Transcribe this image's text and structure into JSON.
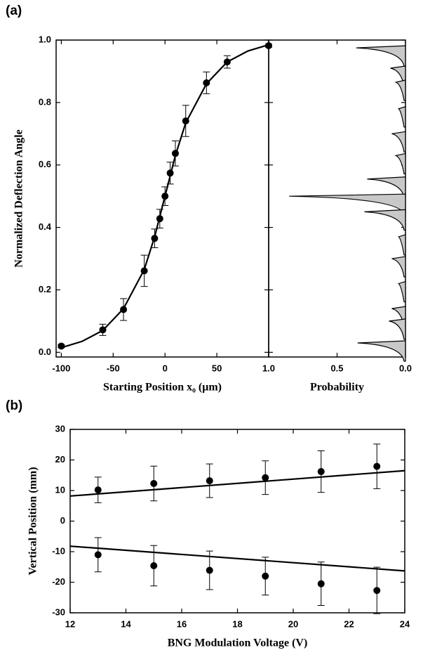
{
  "chart_data": [
    {
      "type": "scatter",
      "title": "(a)",
      "xlabel": "Starting Position x₀ (μm)",
      "ylabel": "Normalized Deflection Angle",
      "xlim": [
        -105,
        100
      ],
      "ylim": [
        -0.015,
        1.0
      ],
      "xticks": [
        -100,
        -50,
        0,
        50
      ],
      "yticks": [
        {
          "value": 0,
          "label": "0.0"
        },
        {
          "value": 0.2,
          "label": "0.2"
        },
        {
          "value": 0.4,
          "label": "0.4"
        },
        {
          "value": 0.6,
          "label": "0.6"
        },
        {
          "value": 0.8,
          "label": "0.8"
        },
        {
          "value": 1.0,
          "label": "1.0"
        }
      ],
      "color": "#000000",
      "series": [
        {
          "x": [
            -100,
            -60,
            -40,
            -20,
            -10,
            -5,
            0,
            5,
            10,
            20,
            40,
            60,
            100
          ],
          "values": [
            0.02,
            0.072,
            0.137,
            0.261,
            0.365,
            0.428,
            0.5,
            0.574,
            0.637,
            0.741,
            0.863,
            0.93,
            0.982
          ],
          "errors": [
            0.005,
            0.018,
            0.035,
            0.05,
            0.03,
            0.03,
            0.03,
            0.035,
            0.04,
            0.05,
            0.035,
            0.02,
            0.005
          ],
          "fit": {
            "x": [
              -100,
              -80,
              -60,
              -40,
              -20,
              -10,
              0,
              10,
              20,
              40,
              60,
              80,
              100
            ],
            "values": [
              0.015,
              0.035,
              0.07,
              0.14,
              0.265,
              0.37,
              0.5,
              0.63,
              0.735,
              0.86,
              0.93,
              0.965,
              0.985
            ]
          }
        }
      ]
    },
    {
      "type": "spectrum",
      "xlabel": "Probability",
      "xlim": [
        1.0,
        0.0
      ],
      "ylim": [
        -0.015,
        1.0
      ],
      "xticks": [
        {
          "value": 1.0,
          "label": "1.0"
        },
        {
          "value": 0.5,
          "label": "0.5"
        },
        {
          "value": 0.0,
          "label": "0.0"
        }
      ],
      "color": "#c8c8c8",
      "levels": [
        0.975,
        0.91,
        0.865,
        0.78,
        0.7,
        0.63,
        0.555,
        0.5,
        0.45,
        0.37,
        0.3,
        0.22,
        0.14,
        0.1,
        0.03
      ],
      "values": [
        0.36,
        0.11,
        0.07,
        0.05,
        0.1,
        0.07,
        0.28,
        0.85,
        0.3,
        0.05,
        0.1,
        0.05,
        0.1,
        0.12,
        0.35
      ]
    },
    {
      "type": "scatter",
      "title": "(b)",
      "xlabel": "BNG Modulation Voltage (V)",
      "ylabel": "Vertical Position (mm)",
      "xlim": [
        12,
        24
      ],
      "ylim": [
        -30,
        30
      ],
      "xticks": [
        12,
        14,
        16,
        18,
        20,
        22,
        24
      ],
      "yticks": [
        -30,
        -20,
        -10,
        0,
        10,
        20,
        30
      ],
      "color": "#000000",
      "series": [
        {
          "x": [
            13,
            15,
            17,
            19,
            21,
            23
          ],
          "values": [
            10.2,
            12.3,
            13.2,
            14.2,
            16.2,
            17.9
          ],
          "errors": [
            4.2,
            5.7,
            5.5,
            5.5,
            6.8,
            7.3
          ],
          "fit": {
            "x": [
              12,
              24
            ],
            "values": [
              8.2,
              16.5
            ]
          }
        },
        {
          "x": [
            13,
            15,
            17,
            19,
            21,
            23
          ],
          "values": [
            -11,
            -14.6,
            -16.1,
            -18,
            -20.5,
            -22.7
          ],
          "errors": [
            5.6,
            6.6,
            6.3,
            6.2,
            7.1,
            7.6
          ],
          "fit": {
            "x": [
              12,
              24
            ],
            "values": [
              -8.2,
              -16.3
            ]
          }
        }
      ]
    }
  ]
}
